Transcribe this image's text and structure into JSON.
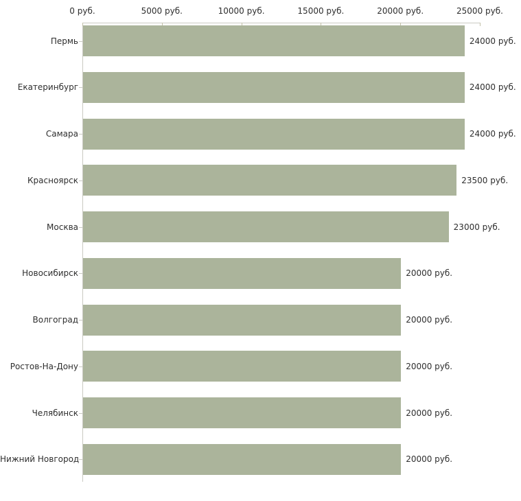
{
  "chart_data": {
    "type": "bar",
    "orientation": "horizontal",
    "title": "",
    "xlabel": "",
    "ylabel": "",
    "xlim": [
      0,
      25000
    ],
    "grid": false,
    "axis_position": "top",
    "categories": [
      "Пермь",
      "Екатеринбург",
      "Самара",
      "Красноярск",
      "Москва",
      "Новосибирск",
      "Волгоград",
      "Ростов-На-Дону",
      "Челябинск",
      "Нижний Новгород"
    ],
    "values": [
      24000,
      24000,
      24000,
      23500,
      23000,
      20000,
      20000,
      20000,
      20000,
      20000
    ],
    "value_labels": [
      "24000 руб.",
      "24000 руб.",
      "24000 руб.",
      "23500 руб.",
      "23000 руб.",
      "20000 руб.",
      "20000 руб.",
      "20000 руб.",
      "20000 руб.",
      "20000 руб."
    ],
    "x_ticks": [
      0,
      5000,
      10000,
      15000,
      20000,
      25000
    ],
    "x_tick_labels": [
      "0 руб.",
      "5000 руб.",
      "10000 руб.",
      "15000 руб.",
      "20000 руб.",
      "25000 руб."
    ],
    "colors": {
      "bar_fill": "#abb49b",
      "axis_line": "#c9c9c2",
      "axis_tick": "#c2c0a8",
      "text": "#2e2e2e",
      "background": "#ffffff"
    }
  }
}
